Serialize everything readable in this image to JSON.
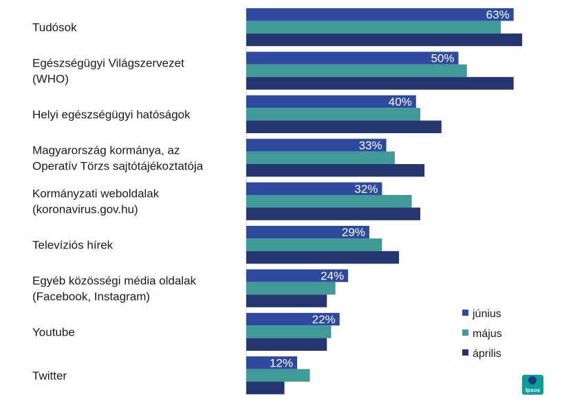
{
  "chart_data": {
    "type": "bar",
    "orientation": "horizontal",
    "categories": [
      [
        "Tudósok"
      ],
      [
        "Egészségügyi Világszervezet",
        "(WHO)"
      ],
      [
        "Helyi egészségügyi hatóságok"
      ],
      [
        "Magyarország kormánya, az",
        "Operatív Törzs sajtótájékoztatója"
      ],
      [
        "Kormányzati weboldalak",
        "(koronavirus.gov.hu)"
      ],
      [
        "Televíziós hírek"
      ],
      [
        "Egyéb közösségi média oldalak",
        "(Facebook, Instagram)"
      ],
      [
        "Youtube"
      ],
      [
        "Twitter"
      ]
    ],
    "series": [
      {
        "name": "június",
        "color": "#2e4a9e",
        "values": [
          63,
          50,
          40,
          33,
          32,
          29,
          24,
          22,
          12
        ],
        "labels": [
          "63%",
          "50%",
          "40%",
          "33%",
          "32%",
          "29%",
          "24%",
          "22%",
          "12%"
        ]
      },
      {
        "name": "május",
        "color": "#3f9a98",
        "values": [
          60,
          52,
          41,
          35,
          39,
          32,
          21,
          20,
          15
        ]
      },
      {
        "name": "április",
        "color": "#233670",
        "values": [
          65,
          63,
          46,
          42,
          41,
          36,
          19,
          19,
          9
        ]
      }
    ],
    "xlim": [
      0,
      100
    ],
    "legend_position": "bottom-right",
    "grid": false
  },
  "logo_text": "Ipsos"
}
